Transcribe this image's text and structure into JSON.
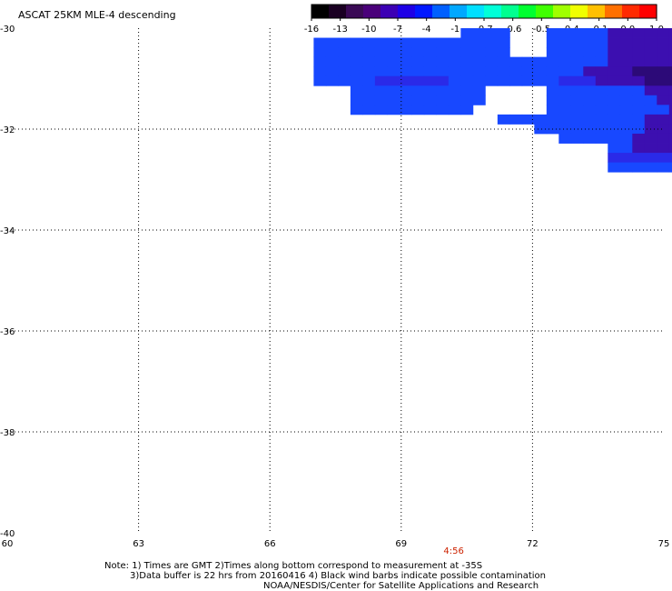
{
  "title": "ASCAT 25KM MLE-4 descending",
  "colorbar": {
    "colors": [
      "#000000",
      "#1a0022",
      "#3a0a55",
      "#4a007a",
      "#3c00b4",
      "#1e00e6",
      "#0018ff",
      "#0060ff",
      "#00a8ff",
      "#00e0ff",
      "#00ffd8",
      "#00ff90",
      "#00ff30",
      "#40ff00",
      "#a0ff00",
      "#f0ff00",
      "#ffc000",
      "#ff7000",
      "#ff2a00",
      "#ff0000"
    ],
    "ticks": [
      "-16",
      "-13",
      "-10",
      "-7",
      "-4",
      "-1",
      "-0.7",
      "-0.6",
      "-0.5",
      "-0.4",
      "-0.1",
      "0.0",
      "1.0"
    ]
  },
  "map": {
    "lon_range": [
      60,
      75
    ],
    "lat_range": [
      -40,
      -30
    ],
    "x_ticks": [
      "60",
      "63",
      "66",
      "69",
      "72",
      "75"
    ],
    "y_ticks": [
      "-30",
      "-32",
      "-34",
      "-36",
      "-38",
      "-40"
    ],
    "time_label": "4:56",
    "time_label_lon": 70.2
  },
  "swath": {
    "lon_start": 67.0,
    "lat_start": -30.0,
    "cell_lon": 0.28,
    "cell_lat": 0.19,
    "grid": [
      "............1111...111113333333333111111111111...1",
      "1111111111111111...1111133333334444333333331111111",
      "1111111111111111...1111133333334444333333331111",
      "111111111111111111111111333333344443333333311111",
      "111111111111111111111133334444555544443333333",
      "1111122222211111111122233334445555444433333",
      "...11111111111.....1111111133334444445533333333",
      "...11111111111.....11111111133334444333311111",
      "...1111111111......11111111113333444433311",
      "...............11111111111133334444333333",
      "..................11111111133333333333",
      "....................1111113333333111",
      "........................1133333331",
      "........................2222222222",
      "........................1111111111"
    ],
    "palette": {
      "1": "#1848ff",
      "2": "#2a2ae8",
      "3": "#3c0fb0",
      "4": "#2c0a78",
      "5": "#14051e"
    }
  },
  "notes": {
    "line1": "Note: 1) Times are GMT 2)Times along bottom correspond to measurement at -35S",
    "line2": "3)Data buffer is 22 hrs from 20160416 4) Black wind barbs indicate possible contamination",
    "line3": "NOAA/NESDIS/Center for Satellite Applications and Research"
  }
}
